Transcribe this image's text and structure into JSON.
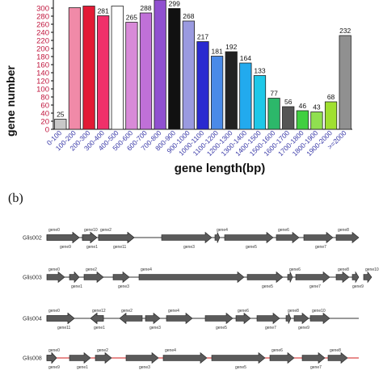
{
  "chart_data": {
    "type": "bar",
    "ylabel": "gene number",
    "xlabel": "gene length(bp)",
    "ylim": [
      0,
      320
    ],
    "yticks": [
      0,
      20,
      40,
      60,
      80,
      100,
      120,
      140,
      160,
      180,
      200,
      220,
      240,
      260,
      280,
      300
    ],
    "categories": [
      "0-100",
      "100-200",
      "200-300",
      "300-400",
      "400-500",
      "500-600",
      "600-700",
      "700-800",
      "800-900",
      "900-1000",
      "1000-1100",
      "1100-1200",
      "1200-1300",
      "1300-1400",
      "1400-1500",
      "1500-1600",
      "1600-1700",
      "1700-1800",
      "1800-1900",
      "1900-2000",
      ">=2000"
    ],
    "values": [
      25,
      301,
      305,
      281,
      305,
      265,
      288,
      320,
      299,
      268,
      217,
      181,
      192,
      164,
      133,
      77,
      56,
      46,
      43,
      68,
      232
    ],
    "data_labels": [
      "25",
      "",
      "",
      "281",
      "",
      "265",
      "288",
      "",
      "299",
      "268",
      "217",
      "181",
      "192",
      "164",
      "133",
      "77",
      "56",
      "46",
      "43",
      "68",
      "232"
    ],
    "colors": [
      "#c8c8c8",
      "#f08aa8",
      "#e31a35",
      "#f0306a",
      "#ffffff",
      "#d88ad8",
      "#c070d8",
      "#9050d0",
      "#111111",
      "#9a9ae0",
      "#2a2ad0",
      "#4a8ae8",
      "#222222",
      "#22aaee",
      "#1ec8e8",
      "#2cb86a",
      "#555555",
      "#40d040",
      "#90e050",
      "#a0e030",
      "#909090"
    ]
  },
  "panel_b": {
    "label": "(b)",
    "rows": [
      {
        "name": "Glis002",
        "line_color": "#333333",
        "genes": [
          {
            "top": "gene0",
            "bottom": ""
          },
          {
            "top": "",
            "bottom": "gene1"
          },
          {
            "top": "gene2",
            "bottom": ""
          },
          {
            "top": "",
            "bottom": "gene3"
          },
          {
            "top": "gene4",
            "bottom": ""
          },
          {
            "top": "",
            "bottom": "gene5"
          },
          {
            "top": "gene6",
            "bottom": ""
          },
          {
            "top": "",
            "bottom": "gene7"
          },
          {
            "top": "gene8",
            "bottom": ""
          },
          {
            "top": "",
            "bottom": "gene9"
          },
          {
            "top": "gene10",
            "bottom": ""
          },
          {
            "top": "",
            "bottom": "gene11"
          }
        ]
      },
      {
        "name": "Glis003",
        "line_color": "#333333",
        "genes": [
          {
            "top": "gene0",
            "bottom": ""
          },
          {
            "top": "",
            "bottom": "gene1"
          },
          {
            "top": "gene2",
            "bottom": ""
          },
          {
            "top": "",
            "bottom": "gene3"
          },
          {
            "top": "gene4",
            "bottom": ""
          },
          {
            "top": "",
            "bottom": "gene5"
          },
          {
            "top": "gene6",
            "bottom": ""
          },
          {
            "top": "",
            "bottom": "gene7"
          },
          {
            "top": "gene8",
            "bottom": ""
          },
          {
            "top": "",
            "bottom": "gene9"
          },
          {
            "top": "gene10",
            "bottom": ""
          }
        ]
      },
      {
        "name": "Glis004",
        "line_color": "#333333",
        "genes": [
          {
            "top": "gene0",
            "bottom": ""
          },
          {
            "top": "",
            "bottom": "gene1"
          },
          {
            "top": "gene2",
            "bottom": ""
          },
          {
            "top": "",
            "bottom": "gene3"
          },
          {
            "top": "gene4",
            "bottom": ""
          },
          {
            "top": "",
            "bottom": "gene5"
          },
          {
            "top": "gene6",
            "bottom": ""
          },
          {
            "top": "",
            "bottom": "gene7"
          },
          {
            "top": "gene8",
            "bottom": ""
          },
          {
            "top": "",
            "bottom": "gene9"
          },
          {
            "top": "gene10",
            "bottom": ""
          },
          {
            "top": "",
            "bottom": "gene11"
          },
          {
            "top": "gene12",
            "bottom": ""
          }
        ]
      },
      {
        "name": "Glis008",
        "line_color": "#d01818",
        "genes": [
          {
            "top": "gene0",
            "bottom": ""
          },
          {
            "top": "",
            "bottom": "gene1"
          },
          {
            "top": "gene2",
            "bottom": ""
          },
          {
            "top": "",
            "bottom": "gene3"
          },
          {
            "top": "gene4",
            "bottom": ""
          },
          {
            "top": "",
            "bottom": "gene5"
          },
          {
            "top": "gene6",
            "bottom": ""
          },
          {
            "top": "",
            "bottom": "gene7"
          },
          {
            "top": "gene8",
            "bottom": ""
          },
          {
            "top": "",
            "bottom": "gene9"
          }
        ]
      }
    ]
  }
}
